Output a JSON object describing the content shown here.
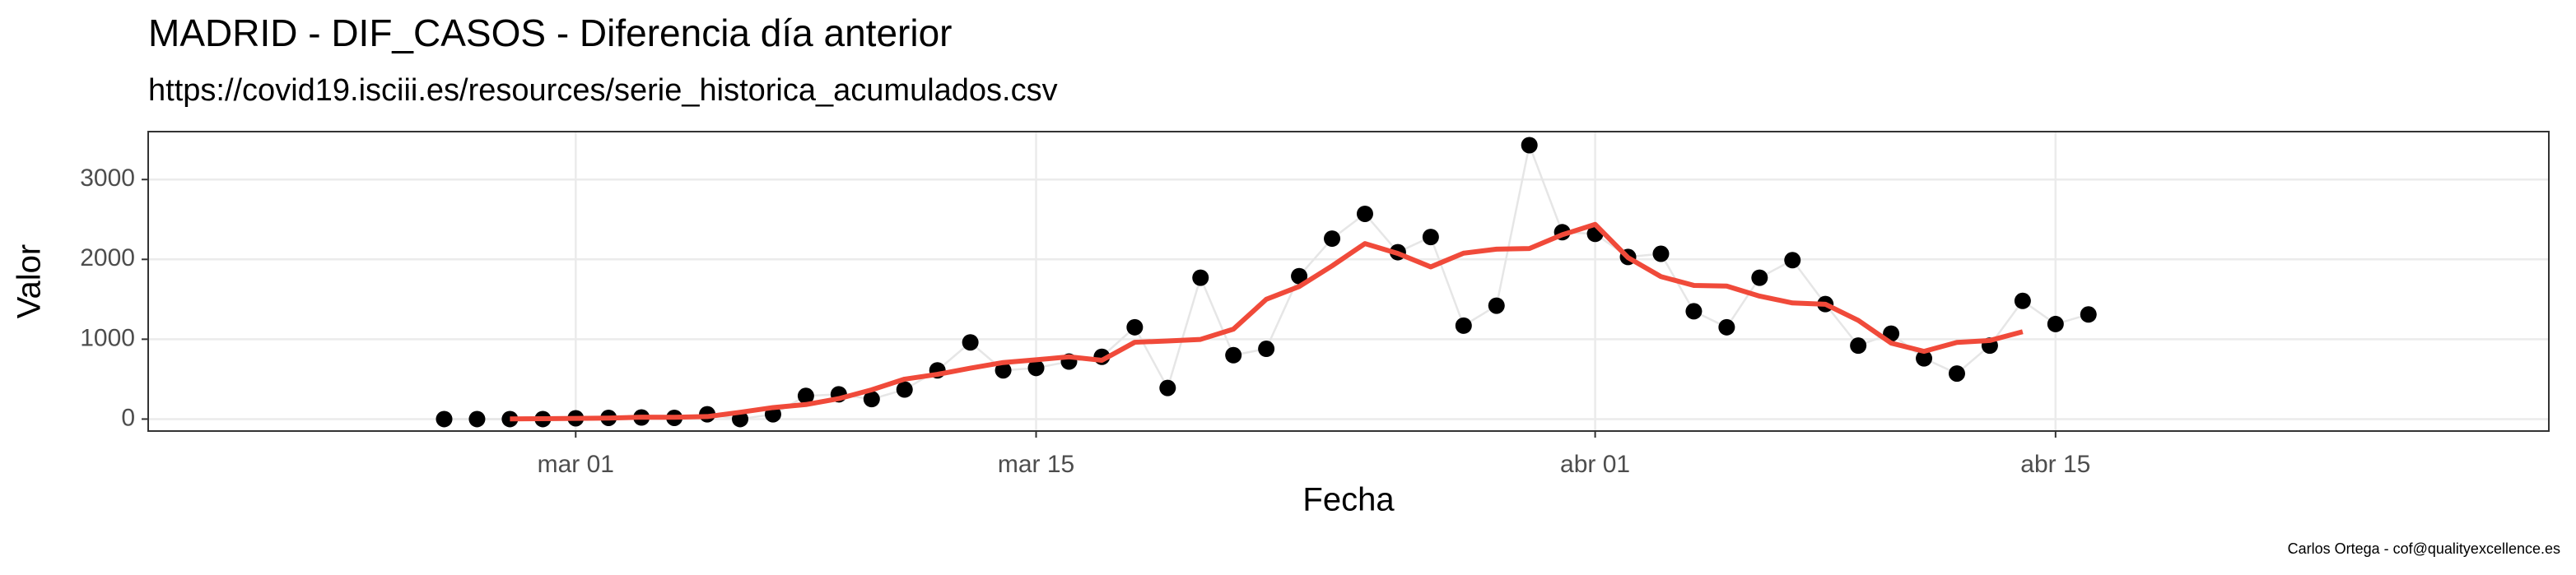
{
  "chart_data": {
    "type": "scatter",
    "title": "MADRID - DIF_CASOS - Diferencia día anterior",
    "subtitle": "https://covid19.isciii.es/resources/serie_historica_acumulados.csv",
    "xlabel": "Fecha",
    "ylabel": "Valor",
    "caption": "Carlos Ortega - cof@qualityexcellence.es",
    "x": [
      "02-26",
      "02-27",
      "02-28",
      "02-29",
      "03-01",
      "03-02",
      "03-03",
      "03-04",
      "03-05",
      "03-06",
      "03-07",
      "03-08",
      "03-09",
      "03-10",
      "03-11",
      "03-12",
      "03-13",
      "03-14",
      "03-15",
      "03-16",
      "03-17",
      "03-18",
      "03-19",
      "03-20",
      "03-21",
      "03-22",
      "03-23",
      "03-24",
      "03-25",
      "03-26",
      "03-27",
      "03-28",
      "03-29",
      "03-30",
      "03-31",
      "04-01",
      "04-02",
      "04-03",
      "04-04",
      "04-05",
      "04-06",
      "04-07",
      "04-08",
      "04-09",
      "04-10",
      "04-11",
      "04-12",
      "04-13",
      "04-14",
      "04-15",
      "04-16"
    ],
    "series": [
      {
        "color": "#000000",
        "line_color": "#e6e6e6",
        "values": [
          0,
          0,
          0,
          0,
          10,
          15,
          20,
          15,
          60,
          0,
          60,
          290,
          310,
          250,
          370,
          610,
          960,
          610,
          640,
          720,
          780,
          1150,
          390,
          1770,
          800,
          880,
          1790,
          2260,
          2570,
          2090,
          2280,
          1170,
          1420,
          3430,
          2340,
          2320,
          2030,
          2070,
          1350,
          1150,
          1770,
          1990,
          1440,
          920,
          1070,
          760,
          570,
          920,
          1480,
          1190,
          1310
        ]
      },
      {
        "color": "#f04a3a",
        "style": "line",
        "values": [
          null,
          null,
          2,
          5,
          9,
          12,
          24,
          22,
          31,
          85,
          144,
          182,
          256,
          366,
          500,
          560,
          638,
          708,
          742,
          780,
          736,
          962,
          978,
          998,
          1126,
          1500,
          1660,
          1918,
          2198,
          2074,
          1906,
          2078,
          2128,
          2136,
          2308,
          2438,
          2022,
          1784,
          1674,
          1666,
          1540,
          1454,
          1438,
          1236,
          952,
          848,
          960,
          984,
          1094,
          null,
          null
        ]
      }
    ],
    "xlim": [
      "02-17",
      "04-30"
    ],
    "xticks": [
      {
        "value": "03-01",
        "label": "mar 01"
      },
      {
        "value": "03-15",
        "label": "mar 15"
      },
      {
        "value": "04-01",
        "label": "abr 01"
      },
      {
        "value": "04-15",
        "label": "abr 15"
      }
    ],
    "ylim": [
      -150,
      3600
    ],
    "yticks": [
      0,
      1000,
      2000,
      3000
    ],
    "grid": true
  }
}
